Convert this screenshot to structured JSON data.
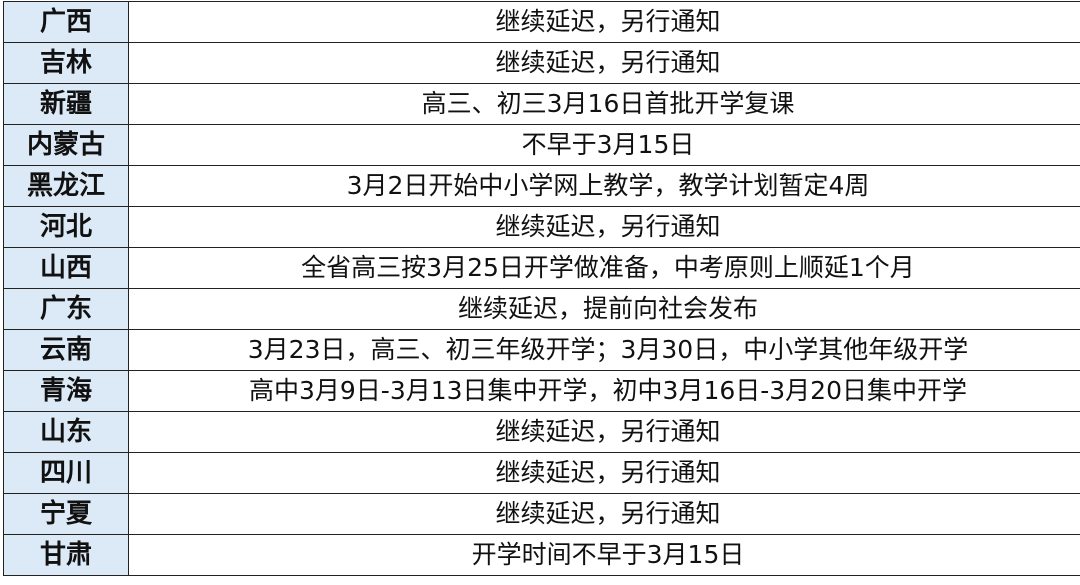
{
  "table": {
    "rows": [
      {
        "province": "广西",
        "status": "继续延迟，另行通知"
      },
      {
        "province": "吉林",
        "status": "继续延迟，另行通知"
      },
      {
        "province": "新疆",
        "status": "高三、初三3月16日首批开学复课"
      },
      {
        "province": "内蒙古",
        "status": "不早于3月15日"
      },
      {
        "province": "黑龙江",
        "status": "3月2日开始中小学网上教学，教学计划暂定4周"
      },
      {
        "province": "河北",
        "status": "继续延迟，另行通知"
      },
      {
        "province": "山西",
        "status": "全省高三按3月25日开学做准备，中考原则上顺延1个月"
      },
      {
        "province": "广东",
        "status": "继续延迟，提前向社会发布"
      },
      {
        "province": "云南",
        "status": "3月23日，高三、初三年级开学；3月30日，中小学其他年级开学"
      },
      {
        "province": "青海",
        "status": "高中3月9日-3月13日集中开学，初中3月16日-3月20日集中开学"
      },
      {
        "province": "山东",
        "status": "继续延迟，另行通知"
      },
      {
        "province": "四川",
        "status": "继续延迟，另行通知"
      },
      {
        "province": "宁夏",
        "status": "继续延迟，另行通知"
      },
      {
        "province": "甘肃",
        "status": "开学时间不早于3月15日"
      }
    ]
  },
  "colors": {
    "province_cell_bg": "#dce9f6",
    "border": "#222222"
  }
}
